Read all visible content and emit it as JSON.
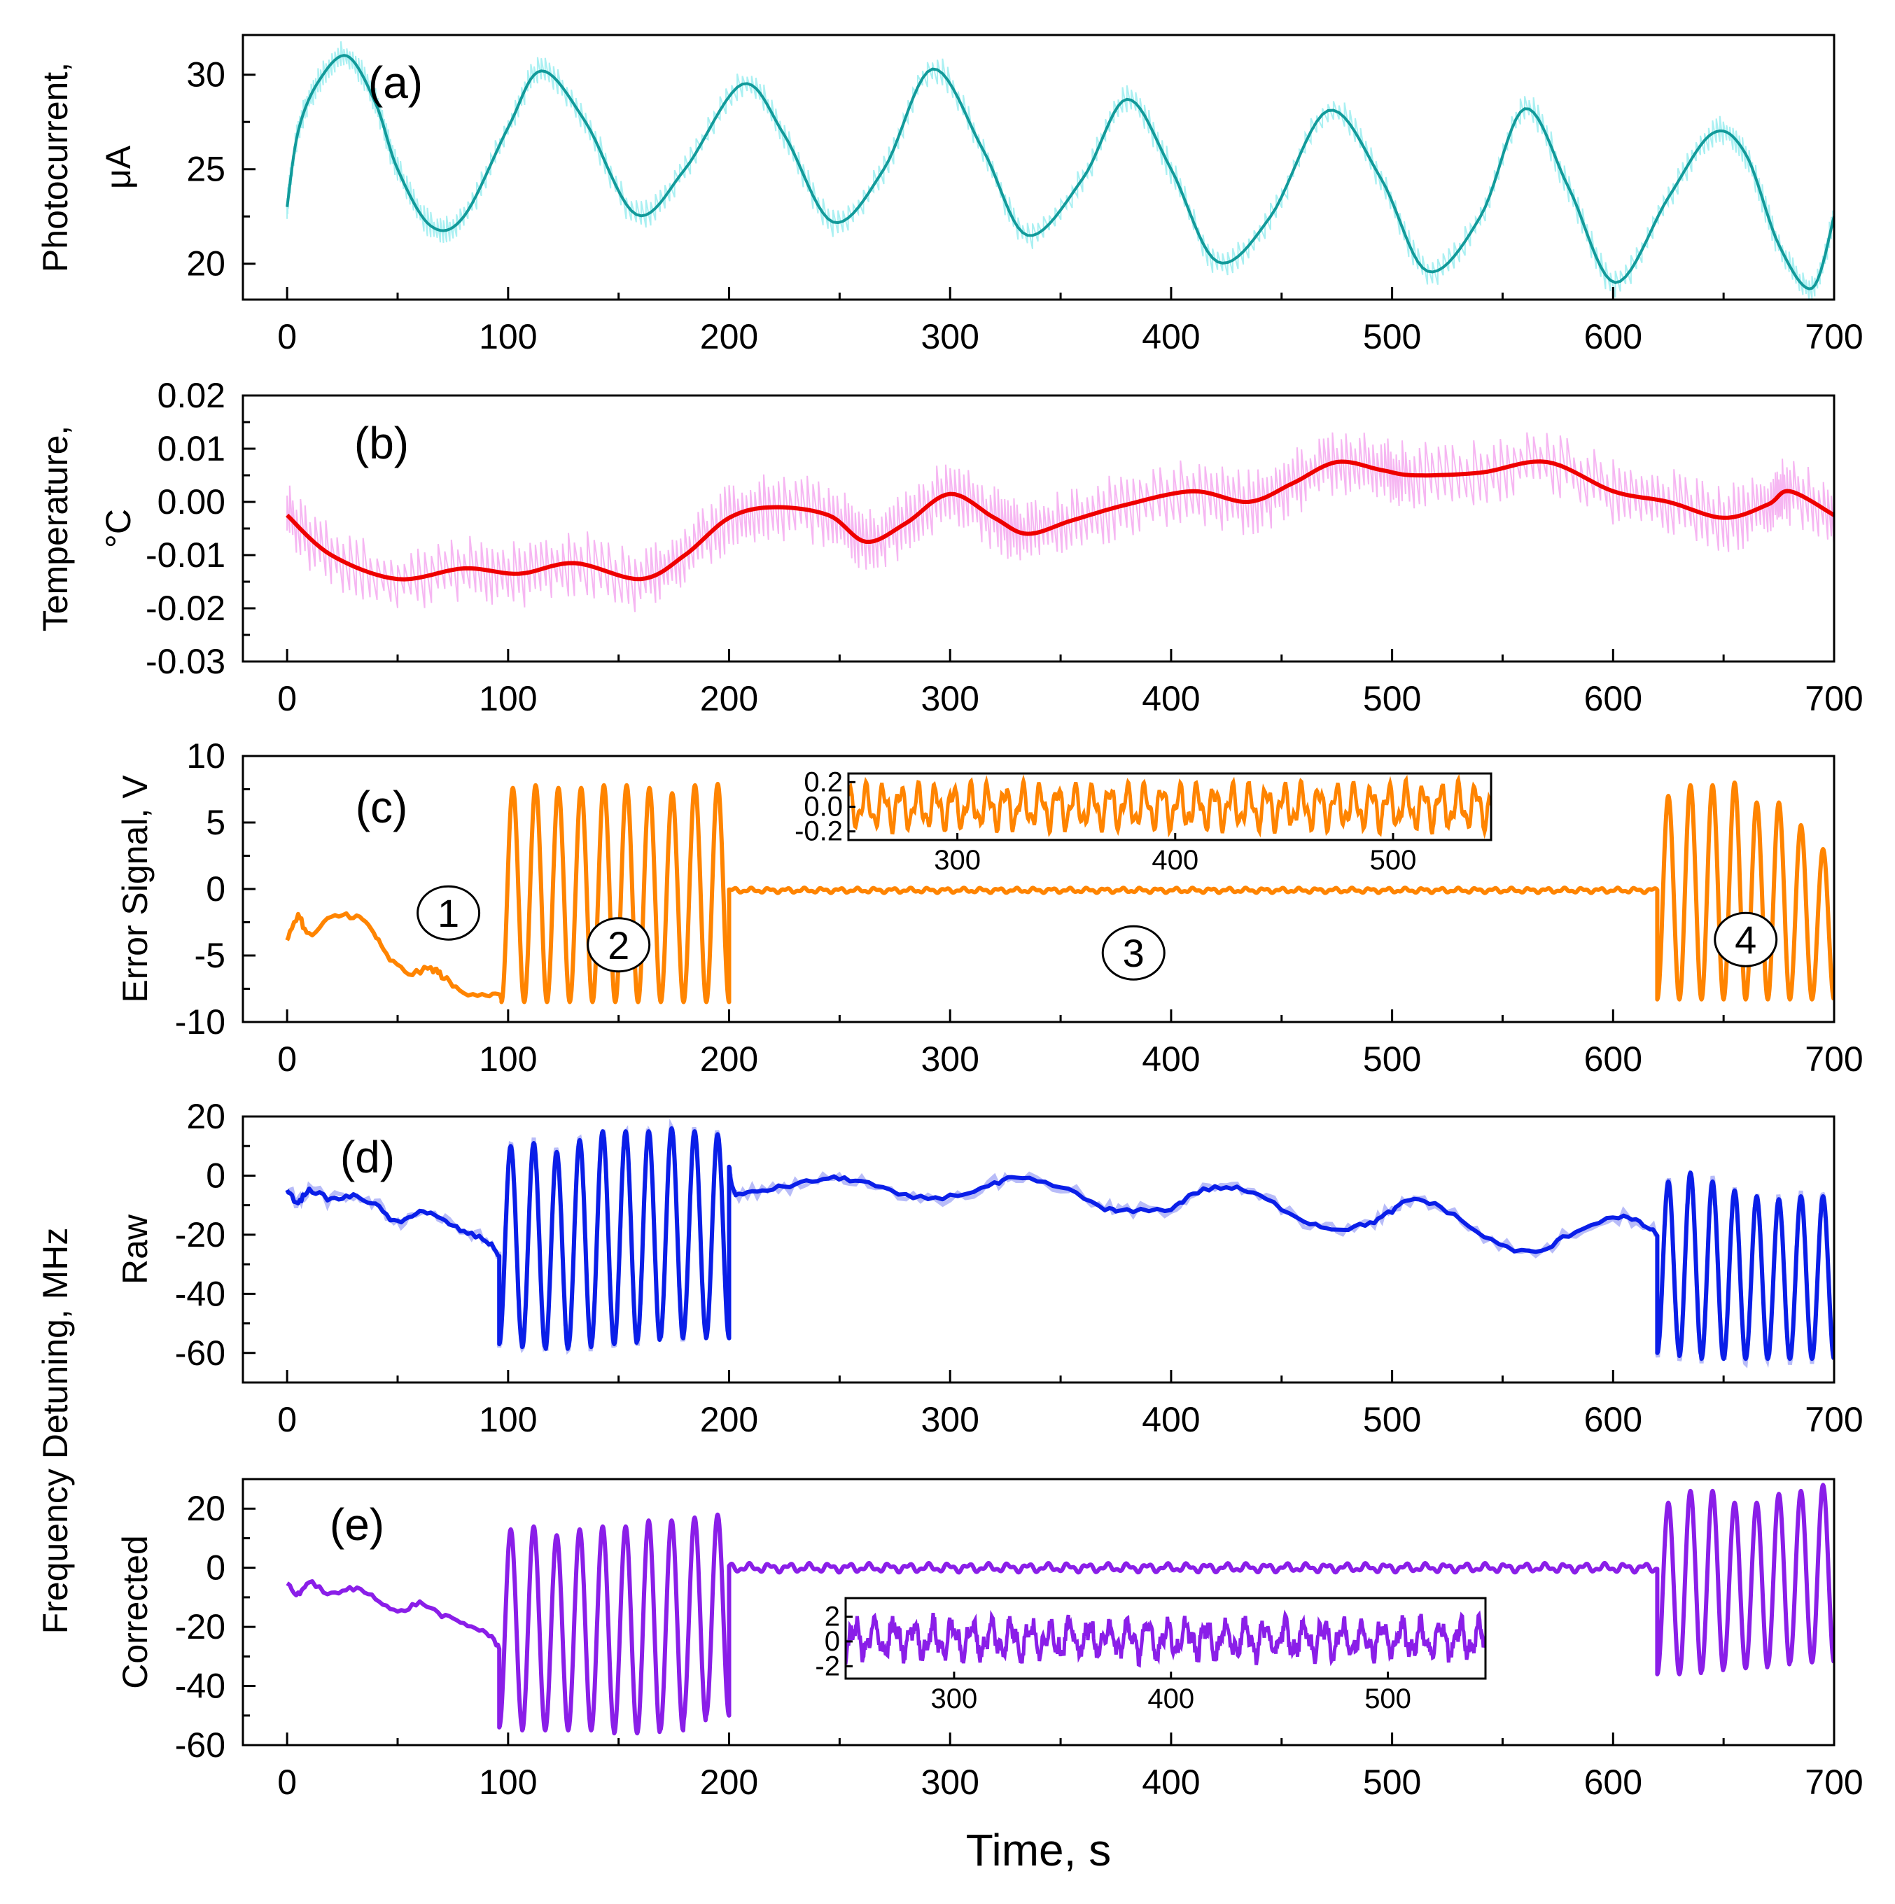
{
  "figure": {
    "xlabel": "Time, s",
    "shared_ylabel": "Frequency Detuning, MHz",
    "colors": {
      "a_line": "#129a9a",
      "a_noise": "#aaf0f2",
      "b_line": "#ee0000",
      "b_noise": "#f6b6f2",
      "c_line": "#ff8400",
      "d_line": "#0a1ee8",
      "d_noise": "#b8bcf8",
      "e_line": "#8a1ee8"
    }
  },
  "chart_data": [
    {
      "id": "a",
      "type": "line",
      "panel_label": "(a)",
      "ylabel_lines": [
        "Photocurrent,",
        "μA"
      ],
      "xlim": [
        -20,
        700
      ],
      "ylim": [
        18.1,
        32.1
      ],
      "xticks": [
        0,
        100,
        200,
        300,
        400,
        500,
        600,
        700
      ],
      "xtick_labels": [
        "0",
        "100",
        "200",
        "300",
        "400",
        "500",
        "600",
        "700"
      ],
      "yticks": [
        20,
        25,
        30
      ],
      "ytick_labels": [
        "20",
        "25",
        "30"
      ],
      "series": [
        {
          "name": "Photocurrent",
          "x": [
            0,
            5,
            14,
            27,
            40,
            50,
            65,
            80,
            100,
            115,
            135,
            158,
            180,
            206,
            225,
            247,
            270,
            292,
            315,
            335,
            360,
            380,
            400,
            421,
            445,
            471,
            495,
            516,
            540,
            560,
            580,
            601,
            625,
            645,
            660,
            675,
            690,
            700
          ],
          "values": [
            23.0,
            27.0,
            29.6,
            31.0,
            28.5,
            25.0,
            22.0,
            22.5,
            27.2,
            30.2,
            27.5,
            22.6,
            25.0,
            29.5,
            26.8,
            22.2,
            25.0,
            30.3,
            26.0,
            21.5,
            24.5,
            28.7,
            25.0,
            20.1,
            22.5,
            28.1,
            24.5,
            19.6,
            22.5,
            28.2,
            24.0,
            19.0,
            23.5,
            26.9,
            25.8,
            21.0,
            18.7,
            22.5
          ]
        }
      ]
    },
    {
      "id": "b",
      "type": "line",
      "panel_label": "(b)",
      "ylabel_lines": [
        "Temperature,",
        "°C"
      ],
      "xlim": [
        -20,
        700
      ],
      "ylim": [
        -0.03,
        0.02
      ],
      "xticks": [
        0,
        100,
        200,
        300,
        400,
        500,
        600,
        700
      ],
      "xtick_labels": [
        "0",
        "100",
        "200",
        "300",
        "400",
        "500",
        "600",
        "700"
      ],
      "yticks": [
        -0.03,
        -0.02,
        -0.01,
        0.0,
        0.01,
        0.02
      ],
      "ytick_labels": [
        "-0.03",
        "-0.02",
        "-0.01",
        "0.00",
        "0.01",
        "0.02"
      ],
      "series": [
        {
          "name": "Temperature",
          "x": [
            0,
            20,
            50,
            80,
            105,
            130,
            160,
            180,
            200,
            220,
            245,
            262,
            280,
            300,
            320,
            335,
            355,
            380,
            410,
            435,
            455,
            475,
            495,
            510,
            540,
            570,
            600,
            625,
            650,
            670,
            680,
            700
          ],
          "values": [
            -0.0025,
            -0.01,
            -0.0145,
            -0.0125,
            -0.0135,
            -0.0115,
            -0.0145,
            -0.01,
            -0.003,
            -0.001,
            -0.0025,
            -0.0075,
            -0.004,
            0.0015,
            -0.003,
            -0.006,
            -0.0035,
            -0.0005,
            0.002,
            0.0,
            0.0035,
            0.0075,
            0.006,
            0.005,
            0.0055,
            0.0075,
            0.002,
            0.0,
            -0.003,
            -0.0005,
            0.002,
            -0.0025
          ]
        }
      ]
    },
    {
      "id": "c",
      "type": "line",
      "panel_label": "(c)",
      "ylabel_lines": [
        "Error Signal, V"
      ],
      "xlim": [
        -20,
        700
      ],
      "ylim": [
        -10,
        10
      ],
      "xticks": [
        0,
        100,
        200,
        300,
        400,
        500,
        600,
        700
      ],
      "xtick_labels": [
        "0",
        "100",
        "200",
        "300",
        "400",
        "500",
        "600",
        "700"
      ],
      "yticks": [
        -10,
        -5,
        0,
        5,
        10
      ],
      "ytick_labels": [
        "-10",
        "-5",
        "0",
        "5",
        "10"
      ],
      "regions": [
        {
          "label": "1",
          "x": 73,
          "y": -1.8
        },
        {
          "label": "2",
          "x": 150,
          "y": -4.2
        },
        {
          "label": "3",
          "x": 383,
          "y": -4.8
        },
        {
          "label": "4",
          "x": 660,
          "y": -3.8
        }
      ],
      "segments": [
        {
          "x_start": 0,
          "x_end": 97,
          "type": "drift",
          "x": [
            0,
            5,
            10,
            20,
            30,
            38,
            45,
            55,
            65,
            70,
            78,
            90,
            97
          ],
          "values": [
            -4.0,
            -2.0,
            -3.5,
            -2.2,
            -2.0,
            -3.0,
            -5.0,
            -6.3,
            -6.0,
            -6.5,
            -7.6,
            -7.9,
            -8.1
          ]
        },
        {
          "x_start": 97,
          "x_end": 200,
          "type": "oscillation",
          "period": 10.3,
          "min": -8.5,
          "amplitudes_max": [
            7.6,
            7.8,
            7.6,
            7.6,
            7.8,
            7.8,
            7.6,
            7.2,
            7.8,
            7.9
          ]
        },
        {
          "x_start": 200,
          "x_end": 620,
          "type": "locked",
          "mean": -0.1,
          "amplitude": 0.2,
          "period": 8.0
        },
        {
          "x_start": 620,
          "x_end": 700,
          "type": "oscillation",
          "period": 10.0,
          "min": -8.3,
          "amplitudes_max": [
            7.0,
            7.8,
            7.8,
            8.0,
            6.5,
            6.5,
            4.8,
            3.0
          ]
        }
      ],
      "inset": {
        "xlim": [
          250,
          545
        ],
        "ylim": [
          -0.27,
          0.27
        ],
        "xticks": [
          300,
          400,
          500
        ],
        "xtick_labels": [
          "300",
          "400",
          "500"
        ],
        "yticks": [
          -0.2,
          0.0,
          0.2
        ],
        "ytick_labels": [
          "-0.2",
          "0.0",
          "0.2"
        ],
        "mean": 0.0,
        "amplitude": 0.21,
        "period": 8.0
      }
    },
    {
      "id": "d",
      "type": "line",
      "panel_label": "(d)",
      "ylabel_lines": [
        "Raw"
      ],
      "xlim": [
        -20,
        700
      ],
      "ylim": [
        -70,
        20
      ],
      "xticks": [
        0,
        100,
        200,
        300,
        400,
        500,
        600,
        700
      ],
      "xtick_labels": [
        "0",
        "100",
        "200",
        "300",
        "400",
        "500",
        "600",
        "700"
      ],
      "yticks": [
        -60,
        -40,
        -20,
        0,
        20
      ],
      "ytick_labels": [
        "-60",
        "-40",
        "-20",
        "0",
        "20"
      ],
      "segments": [
        {
          "x_start": 0,
          "x_end": 96,
          "type": "drift",
          "x": [
            0,
            5,
            10,
            20,
            30,
            40,
            50,
            60,
            70,
            80,
            90,
            96
          ],
          "values": [
            -5,
            -9,
            -5,
            -8,
            -7,
            -10,
            -16,
            -12,
            -15,
            -19,
            -22,
            -27
          ]
        },
        {
          "x_start": 96,
          "x_end": 200,
          "type": "oscillation",
          "period": 10.4,
          "minima": [
            -57,
            -58,
            -59,
            -58,
            -57,
            -57,
            -56,
            -55,
            -54,
            -55
          ],
          "maxima": [
            10,
            11,
            8,
            12,
            15,
            15,
            15,
            16,
            15,
            14
          ]
        },
        {
          "x_start": 200,
          "x_end": 620,
          "type": "drift",
          "x": [
            200,
            203,
            215,
            230,
            245,
            260,
            280,
            300,
            320,
            330,
            350,
            370,
            380,
            400,
            410,
            425,
            440,
            460,
            475,
            490,
            500,
            510,
            525,
            545,
            565,
            580,
            600,
            612,
            620
          ],
          "values": [
            3,
            -6,
            -5,
            -3,
            -1,
            -2,
            -7,
            -7,
            -3,
            -1,
            -4,
            -11,
            -12,
            -11,
            -6,
            -4,
            -7,
            -15,
            -18,
            -16,
            -12,
            -8,
            -12,
            -22,
            -26,
            -20,
            -14,
            -16,
            -20
          ]
        },
        {
          "x_start": 620,
          "x_end": 700,
          "type": "oscillation",
          "period": 10.0,
          "minima": [
            -60,
            -61,
            -62,
            -62,
            -62,
            -62,
            -62,
            -62
          ],
          "maxima": [
            -2,
            1,
            -2,
            -5,
            -7,
            -8,
            -7,
            -7
          ]
        }
      ]
    },
    {
      "id": "e",
      "type": "line",
      "panel_label": "(e)",
      "ylabel_lines": [
        "Corrected"
      ],
      "xlim": [
        -20,
        700
      ],
      "ylim": [
        -60,
        30
      ],
      "xticks": [
        0,
        100,
        200,
        300,
        400,
        500,
        600,
        700
      ],
      "xtick_labels": [
        "0",
        "100",
        "200",
        "300",
        "400",
        "500",
        "600",
        "700"
      ],
      "yticks": [
        -60,
        -40,
        -20,
        0,
        20
      ],
      "ytick_labels": [
        "-60",
        "-40",
        "-20",
        "0",
        "20"
      ],
      "segments": [
        {
          "x_start": 0,
          "x_end": 96,
          "type": "drift",
          "x": [
            0,
            5,
            10,
            20,
            30,
            40,
            50,
            60,
            70,
            80,
            90,
            96
          ],
          "values": [
            -5,
            -9,
            -5,
            -9,
            -7,
            -10,
            -15,
            -12,
            -16,
            -19,
            -22,
            -27
          ]
        },
        {
          "x_start": 96,
          "x_end": 200,
          "type": "oscillation",
          "period": 10.4,
          "minima": [
            -54,
            -55,
            -55,
            -55,
            -55,
            -56,
            -56,
            -55,
            -52,
            -50
          ],
          "maxima": [
            13,
            14,
            11,
            13,
            14,
            14,
            16,
            16,
            17,
            18
          ]
        },
        {
          "x_start": 200,
          "x_end": 620,
          "type": "locked",
          "mean": 0.0,
          "amplitude": 1.6,
          "period": 9.0
        },
        {
          "x_start": 620,
          "x_end": 700,
          "type": "oscillation",
          "period": 10.0,
          "minima": [
            -36,
            -36,
            -35,
            -34,
            -34,
            -33,
            -32,
            -32
          ],
          "maxima": [
            22,
            26,
            26,
            22,
            22,
            25,
            26,
            28
          ]
        }
      ],
      "inset": {
        "xlim": [
          250,
          545
        ],
        "ylim": [
          -3,
          3.5
        ],
        "xticks": [
          300,
          400,
          500
        ],
        "xtick_labels": [
          "300",
          "400",
          "500"
        ],
        "yticks": [
          -2,
          0,
          2
        ],
        "ytick_labels": [
          "-2",
          "0",
          "2"
        ],
        "mean": 0.2,
        "amplitude": 1.6,
        "period": 9.0
      }
    }
  ]
}
